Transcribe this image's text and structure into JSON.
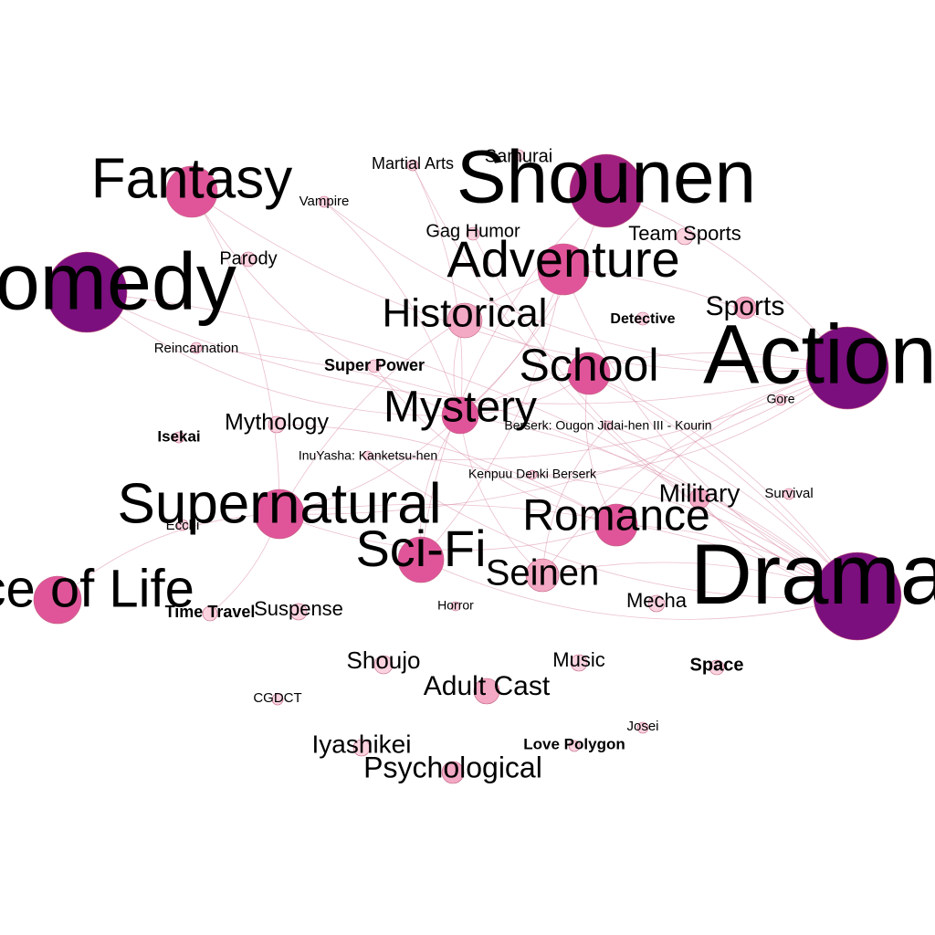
{
  "colors": {
    "background": "#ffffff",
    "edge": "#d98aa6",
    "node_large": "#7b0f7e",
    "node_mid": "#a0207f",
    "node_medium": "#e0559a",
    "node_small": "#f3a8c4",
    "node_tiny": "#fbd3df",
    "node_stroke": "#c0607f",
    "label": "#000000"
  },
  "graph": {
    "nodes": [
      {
        "id": "shounen",
        "label": "Shounen",
        "size": "xl",
        "color": "node_mid"
      },
      {
        "id": "samurai",
        "label": "Samurai",
        "size": "tiny",
        "color": "node_tiny"
      },
      {
        "id": "martial-arts",
        "label": "Martial Arts",
        "size": "tiny",
        "color": "node_tiny"
      },
      {
        "id": "fantasy",
        "label": "Fantasy",
        "size": "large",
        "color": "node_medium"
      },
      {
        "id": "vampire",
        "label": "Vampire",
        "size": "tiny",
        "color": "node_tiny"
      },
      {
        "id": "gag-humor",
        "label": "Gag Humor",
        "size": "tiny",
        "color": "node_tiny"
      },
      {
        "id": "team-sports",
        "label": "Team Sports",
        "size": "tiny",
        "color": "node_tiny"
      },
      {
        "id": "comedy",
        "label": "Comedy",
        "size": "xxl",
        "color": "node_large"
      },
      {
        "id": "parody",
        "label": "Parody",
        "size": "tiny",
        "color": "node_tiny"
      },
      {
        "id": "adventure",
        "label": "Adventure",
        "size": "large",
        "color": "node_medium"
      },
      {
        "id": "historical",
        "label": "Historical",
        "size": "medium",
        "color": "node_small"
      },
      {
        "id": "detective",
        "label": "Detective",
        "size": "tiny",
        "color": "node_tiny"
      },
      {
        "id": "sports",
        "label": "Sports",
        "size": "small",
        "color": "node_small"
      },
      {
        "id": "action",
        "label": "Action",
        "size": "xxl",
        "color": "node_large"
      },
      {
        "id": "reincarnation",
        "label": "Reincarnation",
        "size": "tiny",
        "color": "node_tiny"
      },
      {
        "id": "super-power",
        "label": "Super Power",
        "size": "tiny",
        "color": "node_tiny"
      },
      {
        "id": "school",
        "label": "School",
        "size": "medium",
        "color": "node_medium"
      },
      {
        "id": "gore",
        "label": "Gore",
        "size": "tiny",
        "color": "node_tiny"
      },
      {
        "id": "mystery",
        "label": "Mystery",
        "size": "medium",
        "color": "node_medium"
      },
      {
        "id": "berserk-ougon",
        "label": "Berserk: Ougon Jidai-hen III - Kourin",
        "size": "tiny",
        "color": "node_tiny"
      },
      {
        "id": "isekai",
        "label": "Isekai",
        "size": "tiny",
        "color": "node_tiny"
      },
      {
        "id": "mythology",
        "label": "Mythology",
        "size": "tiny",
        "color": "node_tiny"
      },
      {
        "id": "inuyasha",
        "label": "InuYasha: Kanketsu-hen",
        "size": "tiny",
        "color": "node_tiny"
      },
      {
        "id": "kenpuu",
        "label": "Kenpuu Denki Berserk",
        "size": "tiny",
        "color": "node_tiny"
      },
      {
        "id": "military",
        "label": "Military",
        "size": "small",
        "color": "node_small"
      },
      {
        "id": "survival",
        "label": "Survival",
        "size": "tiny",
        "color": "node_tiny"
      },
      {
        "id": "supernatural",
        "label": "Supernatural",
        "size": "large",
        "color": "node_medium"
      },
      {
        "id": "ecchi",
        "label": "Ecchi",
        "size": "tiny",
        "color": "node_tiny"
      },
      {
        "id": "romance",
        "label": "Romance",
        "size": "large",
        "color": "node_medium"
      },
      {
        "id": "sci-fi",
        "label": "Sci-Fi",
        "size": "large",
        "color": "node_medium"
      },
      {
        "id": "seinen",
        "label": "Seinen",
        "size": "medium",
        "color": "node_small"
      },
      {
        "id": "drama",
        "label": "Drama",
        "size": "xxl",
        "color": "node_large"
      },
      {
        "id": "slice-of-life",
        "label": "Slice of Life",
        "size": "medium",
        "color": "node_medium"
      },
      {
        "id": "time-travel",
        "label": "Time Travel",
        "size": "tiny",
        "color": "node_tiny"
      },
      {
        "id": "suspense",
        "label": "Suspense",
        "size": "tiny",
        "color": "node_tiny"
      },
      {
        "id": "horror",
        "label": "Horror",
        "size": "tiny",
        "color": "node_tiny"
      },
      {
        "id": "mecha",
        "label": "Mecha",
        "size": "tiny",
        "color": "node_tiny"
      },
      {
        "id": "shoujo",
        "label": "Shoujo",
        "size": "tiny",
        "color": "node_tiny"
      },
      {
        "id": "music",
        "label": "Music",
        "size": "tiny",
        "color": "node_tiny"
      },
      {
        "id": "space",
        "label": "Space",
        "size": "tiny",
        "color": "node_tiny"
      },
      {
        "id": "cgdct",
        "label": "CGDCT",
        "size": "tiny",
        "color": "node_tiny"
      },
      {
        "id": "adult-cast",
        "label": "Adult Cast",
        "size": "small",
        "color": "node_small"
      },
      {
        "id": "josei",
        "label": "Josei",
        "size": "tiny",
        "color": "node_tiny"
      },
      {
        "id": "iyashikei",
        "label": "Iyashikei",
        "size": "tiny",
        "color": "node_tiny"
      },
      {
        "id": "love-polygon",
        "label": "Love Polygon",
        "size": "tiny",
        "color": "node_tiny"
      },
      {
        "id": "psychological",
        "label": "Psychological",
        "size": "small",
        "color": "node_small"
      }
    ],
    "edges": [
      [
        "fantasy",
        "mystery"
      ],
      [
        "fantasy",
        "supernatural"
      ],
      [
        "fantasy",
        "action"
      ],
      [
        "vampire",
        "mystery"
      ],
      [
        "vampire",
        "action"
      ],
      [
        "martial-arts",
        "mystery"
      ],
      [
        "martial-arts",
        "drama"
      ],
      [
        "shounen",
        "mystery"
      ],
      [
        "shounen",
        "sci-fi"
      ],
      [
        "shounen",
        "action"
      ],
      [
        "gag-humor",
        "drama"
      ],
      [
        "adventure",
        "mystery"
      ],
      [
        "adventure",
        "drama"
      ],
      [
        "adventure",
        "sci-fi"
      ],
      [
        "adventure",
        "supernatural"
      ],
      [
        "adventure",
        "action"
      ],
      [
        "historical",
        "mystery"
      ],
      [
        "historical",
        "drama"
      ],
      [
        "comedy",
        "mystery"
      ],
      [
        "comedy",
        "drama"
      ],
      [
        "comedy",
        "action"
      ],
      [
        "school",
        "mystery"
      ],
      [
        "school",
        "romance"
      ],
      [
        "school",
        "drama"
      ],
      [
        "action",
        "mystery"
      ],
      [
        "action",
        "supernatural"
      ],
      [
        "action",
        "romance"
      ],
      [
        "action",
        "inuyasha"
      ],
      [
        "action",
        "seinen"
      ],
      [
        "mystery",
        "supernatural"
      ],
      [
        "mystery",
        "sci-fi"
      ],
      [
        "mystery",
        "drama"
      ],
      [
        "mystery",
        "seinen"
      ],
      [
        "berserk-ougon",
        "drama"
      ],
      [
        "berserk-ougon",
        "seinen"
      ],
      [
        "kenpuu",
        "drama"
      ],
      [
        "kenpuu",
        "action"
      ],
      [
        "inuyasha",
        "romance"
      ],
      [
        "inuyasha",
        "drama"
      ],
      [
        "supernatural",
        "drama"
      ],
      [
        "supernatural",
        "slice-of-life"
      ],
      [
        "supernatural",
        "time-travel"
      ],
      [
        "supernatural",
        "romance"
      ],
      [
        "romance",
        "drama"
      ],
      [
        "sci-fi",
        "drama"
      ],
      [
        "seinen",
        "drama"
      ],
      [
        "military",
        "drama"
      ],
      [
        "mythology",
        "romance"
      ],
      [
        "super-power",
        "romance"
      ],
      [
        "reincarnation",
        "drama"
      ]
    ]
  }
}
